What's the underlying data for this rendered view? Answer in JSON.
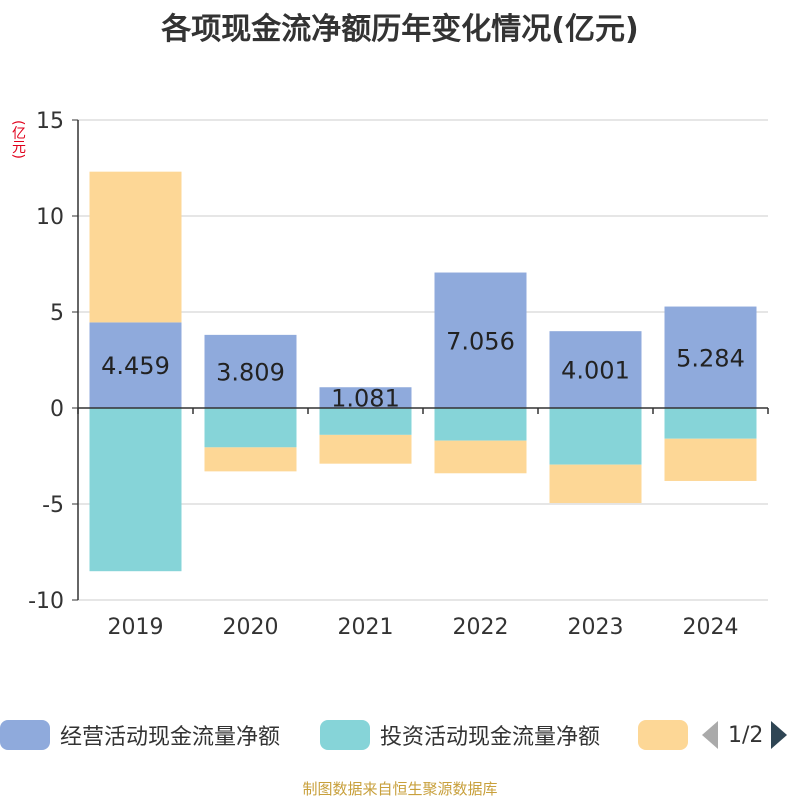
{
  "title": "各项现金流净额历年变化情况(亿元)",
  "unit_label": "(亿元)",
  "chart_data": {
    "type": "bar",
    "stacked": true,
    "categories": [
      "2019",
      "2020",
      "2021",
      "2022",
      "2023",
      "2024"
    ],
    "ylim": [
      -10,
      15
    ],
    "yticks": [
      15,
      10,
      5,
      0,
      -5,
      -10
    ],
    "series": [
      {
        "name": "经营活动现金流量净额",
        "color": "#8faadc",
        "values": [
          4.459,
          3.809,
          1.081,
          7.056,
          4.001,
          5.284
        ],
        "show_labels": true
      },
      {
        "name": "投资活动现金流量净额",
        "color": "#86d4d8",
        "values": [
          -8.5,
          -2.05,
          -1.4,
          -1.7,
          -2.95,
          -1.6
        ],
        "show_labels": false
      },
      {
        "name": "",
        "color": "#fdd796",
        "values": [
          7.85,
          -1.25,
          -1.5,
          -1.7,
          -2.0,
          -2.2
        ],
        "show_labels": false
      }
    ]
  },
  "legend": {
    "items": [
      {
        "label": "经营活动现金流量净额",
        "color": "#8faadc"
      },
      {
        "label": "投资活动现金流量净额",
        "color": "#86d4d8"
      },
      {
        "label": "",
        "color": "#fdd796"
      }
    ],
    "page_text": "1/2"
  },
  "source": "制图数据来自恒生聚源数据库"
}
